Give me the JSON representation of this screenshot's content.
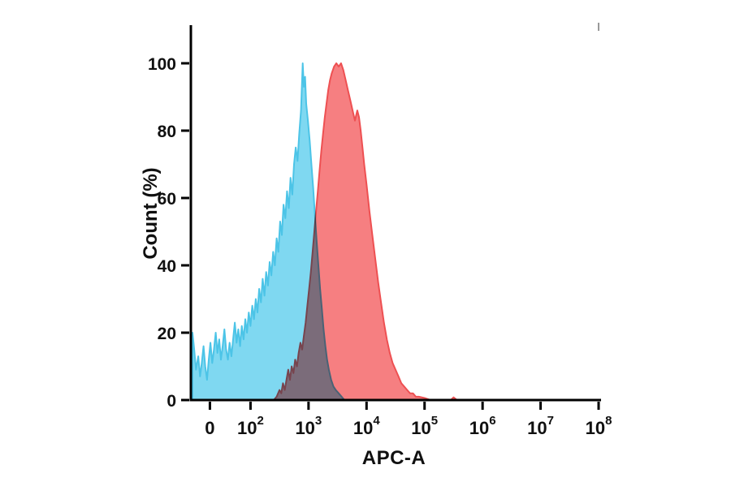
{
  "chart_data": {
    "type": "area",
    "subtype": "flow-cytometry-histogram-overlay",
    "title": "",
    "xlabel": "APC-A",
    "ylabel": "Count (%)",
    "ylim": [
      0,
      100
    ],
    "y_ticks": [
      0,
      20,
      40,
      60,
      80,
      100
    ],
    "x_scale": "biexponential: 0 then log decades 10^2 to 10^8 (pos = decade units 0-7)",
    "x_axis_units": {
      "min": 0,
      "max": 7
    },
    "grid": "off",
    "legend": "none",
    "x_ticks": [
      {
        "label": "0",
        "pos": 0.3
      },
      {
        "label": "10^2",
        "base": "10",
        "exp": "2",
        "pos": 1
      },
      {
        "label": "10^3",
        "base": "10",
        "exp": "3",
        "pos": 2
      },
      {
        "label": "10^4",
        "base": "10",
        "exp": "4",
        "pos": 3
      },
      {
        "label": "10^5",
        "base": "10",
        "exp": "5",
        "pos": 4
      },
      {
        "label": "10^6",
        "base": "10",
        "exp": "6",
        "pos": 5
      },
      {
        "label": "10^7",
        "base": "10",
        "exp": "7",
        "pos": 6
      },
      {
        "label": "10^8",
        "base": "10",
        "exp": "8",
        "pos": 7
      }
    ],
    "series": [
      {
        "id": "blue-histogram",
        "name": "blue (left) population",
        "color": "#7FD8F1",
        "stroke": "#4CC4E7",
        "peak_pos": 1.9,
        "peak_percent": 100,
        "points": [
          [
            0,
            20
          ],
          [
            0.03,
            15
          ],
          [
            0.06,
            9
          ],
          [
            0.1,
            13
          ],
          [
            0.13,
            7
          ],
          [
            0.16,
            11
          ],
          [
            0.19,
            16
          ],
          [
            0.22,
            10
          ],
          [
            0.25,
            6
          ],
          [
            0.28,
            12
          ],
          [
            0.31,
            17
          ],
          [
            0.34,
            11
          ],
          [
            0.37,
            15
          ],
          [
            0.4,
            20
          ],
          [
            0.43,
            14
          ],
          [
            0.46,
            18
          ],
          [
            0.49,
            12
          ],
          [
            0.52,
            16
          ],
          [
            0.55,
            21
          ],
          [
            0.58,
            15
          ],
          [
            0.61,
            12
          ],
          [
            0.64,
            17
          ],
          [
            0.67,
            13
          ],
          [
            0.7,
            18
          ],
          [
            0.73,
            23
          ],
          [
            0.76,
            17
          ],
          [
            0.79,
            21
          ],
          [
            0.82,
            16
          ],
          [
            0.85,
            22
          ],
          [
            0.88,
            18
          ],
          [
            0.91,
            24
          ],
          [
            0.94,
            20
          ],
          [
            0.97,
            26
          ],
          [
            1.0,
            22
          ],
          [
            1.03,
            28
          ],
          [
            1.06,
            24
          ],
          [
            1.09,
            30
          ],
          [
            1.12,
            26
          ],
          [
            1.15,
            33
          ],
          [
            1.18,
            29
          ],
          [
            1.21,
            36
          ],
          [
            1.24,
            31
          ],
          [
            1.27,
            38
          ],
          [
            1.3,
            34
          ],
          [
            1.33,
            41
          ],
          [
            1.36,
            37
          ],
          [
            1.39,
            44
          ],
          [
            1.42,
            40
          ],
          [
            1.45,
            48
          ],
          [
            1.48,
            44
          ],
          [
            1.51,
            53
          ],
          [
            1.54,
            49
          ],
          [
            1.57,
            58
          ],
          [
            1.6,
            54
          ],
          [
            1.63,
            62
          ],
          [
            1.66,
            57
          ],
          [
            1.69,
            66
          ],
          [
            1.72,
            61
          ],
          [
            1.75,
            70
          ],
          [
            1.78,
            75
          ],
          [
            1.81,
            71
          ],
          [
            1.84,
            79
          ],
          [
            1.87,
            86
          ],
          [
            1.9,
            100
          ],
          [
            1.92,
            93
          ],
          [
            1.94,
            96
          ],
          [
            1.96,
            88
          ],
          [
            1.99,
            83
          ],
          [
            2.02,
            77
          ],
          [
            2.05,
            70
          ],
          [
            2.08,
            63
          ],
          [
            2.11,
            55
          ],
          [
            2.14,
            47
          ],
          [
            2.17,
            40
          ],
          [
            2.2,
            33
          ],
          [
            2.23,
            27
          ],
          [
            2.26,
            21
          ],
          [
            2.29,
            16
          ],
          [
            2.32,
            12
          ],
          [
            2.35,
            9
          ],
          [
            2.39,
            6
          ],
          [
            2.43,
            4
          ],
          [
            2.47,
            3
          ],
          [
            2.52,
            2
          ],
          [
            2.57,
            1
          ],
          [
            2.62,
            0
          ]
        ]
      },
      {
        "id": "red-histogram",
        "name": "red (right) population",
        "color": "#F5696B",
        "stroke": "#EE5052",
        "fill_opacity": 0.85,
        "blend": "multiply",
        "peak_pos": 2.5,
        "peak_percent": 100,
        "points": [
          [
            1.4,
            0
          ],
          [
            1.45,
            1
          ],
          [
            1.5,
            3
          ],
          [
            1.53,
            2
          ],
          [
            1.56,
            5
          ],
          [
            1.59,
            3
          ],
          [
            1.62,
            6
          ],
          [
            1.65,
            9
          ],
          [
            1.68,
            6
          ],
          [
            1.71,
            10
          ],
          [
            1.74,
            8
          ],
          [
            1.77,
            12
          ],
          [
            1.8,
            10
          ],
          [
            1.83,
            14
          ],
          [
            1.86,
            17
          ],
          [
            1.89,
            15
          ],
          [
            1.92,
            19
          ],
          [
            1.95,
            23
          ],
          [
            1.98,
            28
          ],
          [
            2.01,
            33
          ],
          [
            2.04,
            38
          ],
          [
            2.07,
            44
          ],
          [
            2.1,
            50
          ],
          [
            2.13,
            56
          ],
          [
            2.16,
            62
          ],
          [
            2.19,
            68
          ],
          [
            2.22,
            74
          ],
          [
            2.25,
            79
          ],
          [
            2.28,
            84
          ],
          [
            2.31,
            88
          ],
          [
            2.34,
            92
          ],
          [
            2.37,
            95
          ],
          [
            2.4,
            97
          ],
          [
            2.44,
            99
          ],
          [
            2.48,
            100
          ],
          [
            2.52,
            99
          ],
          [
            2.56,
            100
          ],
          [
            2.6,
            98
          ],
          [
            2.64,
            95
          ],
          [
            2.68,
            92
          ],
          [
            2.72,
            89
          ],
          [
            2.76,
            86
          ],
          [
            2.8,
            83
          ],
          [
            2.84,
            86
          ],
          [
            2.87,
            84
          ],
          [
            2.9,
            80
          ],
          [
            2.93,
            75
          ],
          [
            2.96,
            70
          ],
          [
            3.0,
            64
          ],
          [
            3.05,
            56
          ],
          [
            3.1,
            49
          ],
          [
            3.15,
            42
          ],
          [
            3.2,
            35
          ],
          [
            3.25,
            29
          ],
          [
            3.3,
            23
          ],
          [
            3.35,
            18
          ],
          [
            3.4,
            14
          ],
          [
            3.45,
            11
          ],
          [
            3.5,
            9
          ],
          [
            3.55,
            7
          ],
          [
            3.6,
            5
          ],
          [
            3.65,
            4
          ],
          [
            3.7,
            3
          ],
          [
            3.75,
            2
          ],
          [
            3.8,
            2
          ],
          [
            3.85,
            1
          ],
          [
            3.9,
            1
          ],
          [
            4.0,
            0.6
          ],
          [
            4.1,
            0
          ],
          [
            4.45,
            0
          ],
          [
            4.5,
            0.8
          ],
          [
            4.56,
            0
          ]
        ]
      }
    ]
  }
}
